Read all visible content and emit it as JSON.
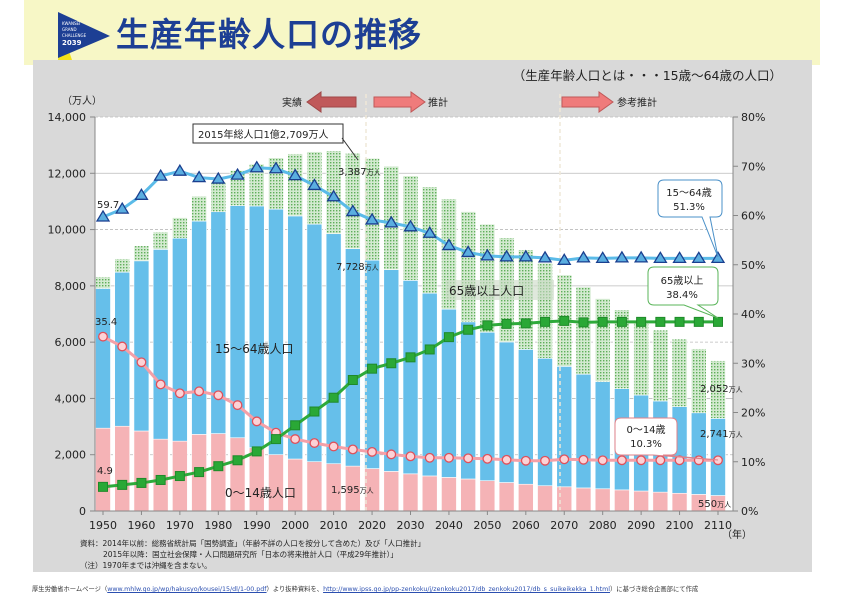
{
  "header": {
    "title": "生産年齢人口の推移",
    "logo_text": [
      "KWANSEI",
      "GRAND",
      "CHALLENGE",
      "2039"
    ]
  },
  "chart_data": {
    "type": "bar",
    "stacked": true,
    "subtitle": "（生産年齢人口とは・・・15歳～64歳の人口）",
    "ylabel_left": "（万人）",
    "xlabel": "（年）",
    "ylim_left": [
      0,
      14000
    ],
    "ylim_right": [
      0,
      80
    ],
    "left_ticks": [
      "0",
      "2,000",
      "4,000",
      "6,000",
      "8,000",
      "10,000",
      "12,000",
      "14,000"
    ],
    "right_ticks": [
      "0%",
      "10%",
      "20%",
      "30%",
      "40%",
      "50%",
      "60%",
      "70%",
      "80%"
    ],
    "x_ticks": [
      "1950",
      "1960",
      "1970",
      "1980",
      "1990",
      "2000",
      "2010",
      "2020",
      "2030",
      "2040",
      "2050",
      "2060",
      "2070",
      "2080",
      "2090",
      "2100",
      "2110"
    ],
    "grid": true,
    "x": [
      1950,
      1955,
      1960,
      1965,
      1970,
      1975,
      1980,
      1985,
      1990,
      1995,
      2000,
      2005,
      2010,
      2015,
      2020,
      2025,
      2030,
      2035,
      2040,
      2045,
      2050,
      2055,
      2060,
      2065,
      2070,
      2075,
      2080,
      2085,
      2090,
      2095,
      2100,
      2105,
      2110
    ],
    "bar_series": [
      {
        "name": "0～14歳人口",
        "color": "#f5b3b6",
        "values": [
          2943,
          3012,
          2843,
          2553,
          2482,
          2722,
          2751,
          2603,
          2249,
          2001,
          1847,
          1752,
          1680,
          1595,
          1507,
          1407,
          1321,
          1246,
          1194,
          1138,
          1077,
          1012,
          951,
          898,
          860,
          820,
          790,
          750,
          710,
          670,
          630,
          590,
          550
        ]
      },
      {
        "name": "15～64歳人口",
        "color": "#66bfea",
        "values": [
          4966,
          5473,
          6047,
          6744,
          7212,
          7581,
          7883,
          8251,
          8590,
          8726,
          8638,
          8442,
          8173,
          7728,
          7406,
          7170,
          6875,
          6494,
          5978,
          5584,
          5275,
          4995,
          4793,
          4529,
          4280,
          4040,
          3810,
          3600,
          3410,
          3240,
          3080,
          2900,
          2741
        ]
      },
      {
        "name": "65歳以上人口",
        "color": "#b9dcb2",
        "values": [
          411,
          475,
          535,
          618,
          733,
          887,
          1065,
          1247,
          1489,
          1826,
          2204,
          2576,
          2948,
          3387,
          3619,
          3677,
          3716,
          3782,
          3921,
          3919,
          3841,
          3704,
          3540,
          3381,
          3250,
          3100,
          2950,
          2800,
          2650,
          2520,
          2400,
          2270,
          2052
        ]
      }
    ],
    "line_series": [
      {
        "name": "15～64歳",
        "axis": "right",
        "color": "#5bbbe8",
        "marker": "triangle",
        "values": [
          59.7,
          61.3,
          64.1,
          68.0,
          69.0,
          67.7,
          67.4,
          68.2,
          69.7,
          69.5,
          68.1,
          66.1,
          63.8,
          60.8,
          59.1,
          58.5,
          57.7,
          56.4,
          53.9,
          52.5,
          51.8,
          51.6,
          51.6,
          51.4,
          50.9,
          51.4,
          51.3,
          51.4,
          51.4,
          51.3,
          51.3,
          51.3,
          51.3
        ]
      },
      {
        "name": "0～14歳",
        "axis": "right",
        "color": "#f4a0a8",
        "marker": "circle",
        "values": [
          35.4,
          33.4,
          30.2,
          25.7,
          23.9,
          24.3,
          23.5,
          21.5,
          18.2,
          15.9,
          14.6,
          13.8,
          13.1,
          12.5,
          12.0,
          11.5,
          11.1,
          10.8,
          10.8,
          10.7,
          10.6,
          10.4,
          10.2,
          10.2,
          10.5,
          10.4,
          10.3,
          10.3,
          10.3,
          10.3,
          10.3,
          10.3,
          10.3
        ]
      },
      {
        "name": "65歳以上",
        "axis": "right",
        "color": "#2eaa3a",
        "marker": "square",
        "values": [
          4.9,
          5.3,
          5.7,
          6.3,
          7.1,
          7.9,
          9.1,
          10.3,
          12.1,
          14.6,
          17.4,
          20.2,
          23.0,
          26.6,
          28.9,
          30.0,
          31.2,
          32.8,
          35.3,
          36.8,
          37.7,
          38.0,
          38.1,
          38.4,
          38.6,
          38.3,
          38.4,
          38.4,
          38.4,
          38.4,
          38.4,
          38.4,
          38.4
        ]
      }
    ],
    "phases": {
      "actual": "実績",
      "projection": "推計",
      "reference": "参考推計"
    },
    "annotations": {
      "total_2015": "2015年総人口1億2,709万人",
      "label_1564": "15～64歳人口",
      "label_65": "65歳以上人口",
      "label_014": "0～14歳人口",
      "first_1564": "59.7",
      "first_014": "35.4",
      "first_65": "4.9",
      "v65_2015": "3,387",
      "v1564_2015": "7,728",
      "v014_2015": "1,595",
      "v65_2110": "2,052",
      "v1564_2110": "2,741",
      "v014_2110": "550",
      "unit": "万人",
      "callout_1564_a": "15～64歳",
      "callout_1564_b": "51.3%",
      "callout_65_a": "65歳以上",
      "callout_65_b": "38.4%",
      "callout_014_a": "0～14歳",
      "callout_014_b": "10.3%"
    },
    "notes": [
      "資料：2014年以前：総務省統計局「国勢調査」（年齢不詳の人口を按分して含めた）及び「人口推計」",
      "2015年以降：国立社会保障・人口問題研究所「日本の将来推計人口（平成29年推計）」",
      "（注）1970年までは沖縄を含まない。"
    ]
  },
  "footer": {
    "prefix": "厚生労働省ホームページ（",
    "link1": "www.mhlw.go.jp/wp/hakusyo/kousei/15/dl/1-00.pdf",
    "middle": "）より抜粋資料を、",
    "link2": "http://www.ipss.go.jp/pp-zenkoku/j/zenkoku2017/db_zenkoku2017/db_s_suikeikekka_1.html",
    "suffix": "）に基づき総合企画部にて作成"
  }
}
